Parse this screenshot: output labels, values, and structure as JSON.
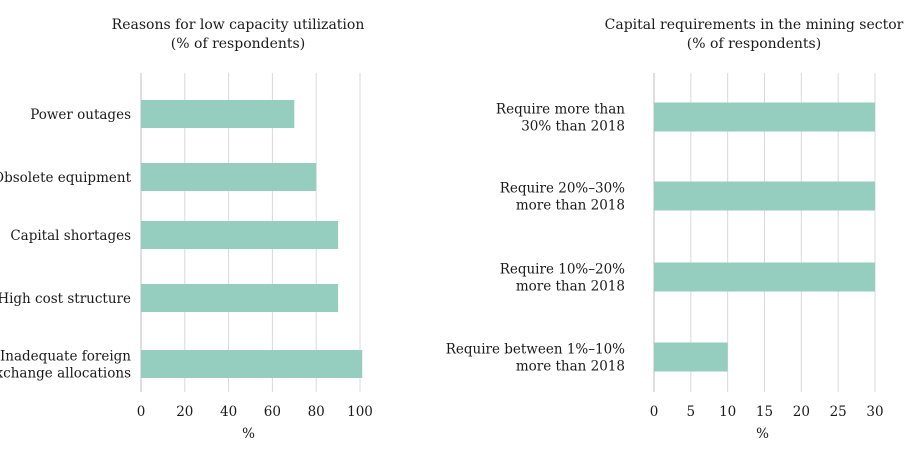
{
  "colors": {
    "bar": "#95cdbf",
    "grid": "#d9d9d9",
    "axis": "#bfbfbf",
    "text": "#1a1a1a"
  },
  "chart_data": [
    {
      "type": "bar",
      "orientation": "horizontal",
      "title": [
        "Reasons for low capacity utilization",
        "(% of respondents)"
      ],
      "xlabel": "%",
      "xlim": [
        0,
        100
      ],
      "ticks": [
        0,
        20,
        40,
        60,
        80,
        100
      ],
      "grid": true,
      "categories": [
        [
          "Power outages"
        ],
        [
          "Obsolete equipment"
        ],
        [
          "Capital shortages"
        ],
        [
          "High cost structure"
        ],
        [
          "Inadequate foreign",
          "exchange allocations"
        ]
      ],
      "values": [
        70,
        80,
        90,
        90,
        101
      ]
    },
    {
      "type": "bar",
      "orientation": "horizontal",
      "title": [
        "Capital requirements in the mining sector",
        "(% of respondents)"
      ],
      "xlabel": "%",
      "xlim": [
        0,
        30
      ],
      "ticks": [
        0,
        5,
        10,
        15,
        20,
        25,
        30
      ],
      "grid": true,
      "categories": [
        [
          "Require more than",
          "30% than 2018"
        ],
        [
          "Require 20%–30%",
          "more than 2018"
        ],
        [
          "Require 10%–20%",
          "more than 2018"
        ],
        [
          "Require between 1%–10%",
          "more than 2018"
        ]
      ],
      "values": [
        30,
        30,
        30,
        10
      ]
    }
  ]
}
